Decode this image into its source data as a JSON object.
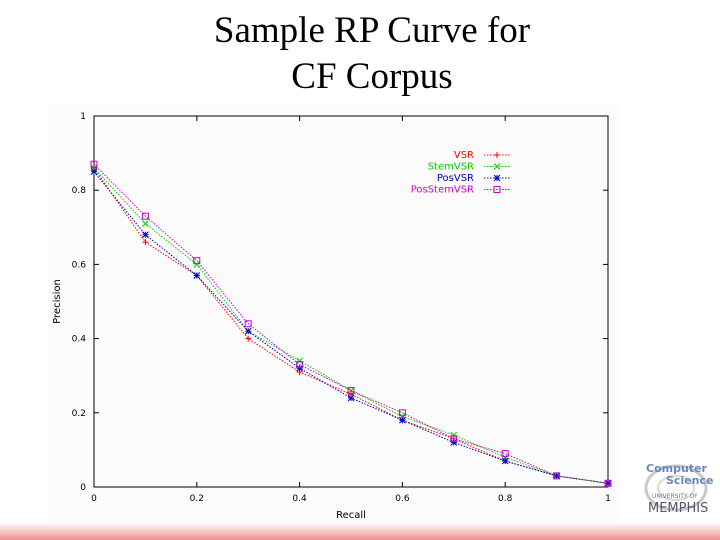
{
  "slide": {
    "title_line1": "Sample RP Curve for",
    "title_line2": "CF Corpus"
  },
  "chart_data": {
    "type": "line",
    "xlabel": "Recall",
    "ylabel": "Precision",
    "xlim": [
      0,
      1
    ],
    "ylim": [
      0,
      1
    ],
    "x_ticks": [
      0,
      0.2,
      0.4,
      0.6,
      0.8,
      1
    ],
    "y_ticks": [
      0,
      0.2,
      0.4,
      0.6,
      0.8,
      1
    ],
    "legend_position": "top-right",
    "x": [
      0,
      0.1,
      0.2,
      0.3,
      0.4,
      0.5,
      0.6,
      0.7,
      0.8,
      0.9,
      1.0
    ],
    "series": [
      {
        "name": "VSR",
        "marker": "+",
        "color": "#ff0000",
        "values": [
          0.86,
          0.66,
          0.57,
          0.4,
          0.31,
          0.25,
          0.18,
          0.13,
          0.07,
          0.03,
          0.01
        ]
      },
      {
        "name": "StemVSR",
        "marker": "x",
        "color": "#00cc00",
        "values": [
          0.86,
          0.71,
          0.6,
          0.42,
          0.34,
          0.26,
          0.19,
          0.14,
          0.08,
          0.03,
          0.01
        ]
      },
      {
        "name": "PosVSR",
        "marker": "*",
        "color": "#0000cc",
        "values": [
          0.85,
          0.68,
          0.57,
          0.42,
          0.32,
          0.24,
          0.18,
          0.12,
          0.07,
          0.03,
          0.01
        ]
      },
      {
        "name": "PosStemVSR",
        "marker": "box",
        "color": "#cc00cc",
        "values": [
          0.87,
          0.73,
          0.61,
          0.44,
          0.33,
          0.26,
          0.2,
          0.13,
          0.09,
          0.03,
          0.01
        ]
      }
    ]
  },
  "logo": {
    "line1": "Computer",
    "line2": "Science",
    "line3": "UNIVERSITY OF",
    "line4": "MEMPHIS"
  }
}
